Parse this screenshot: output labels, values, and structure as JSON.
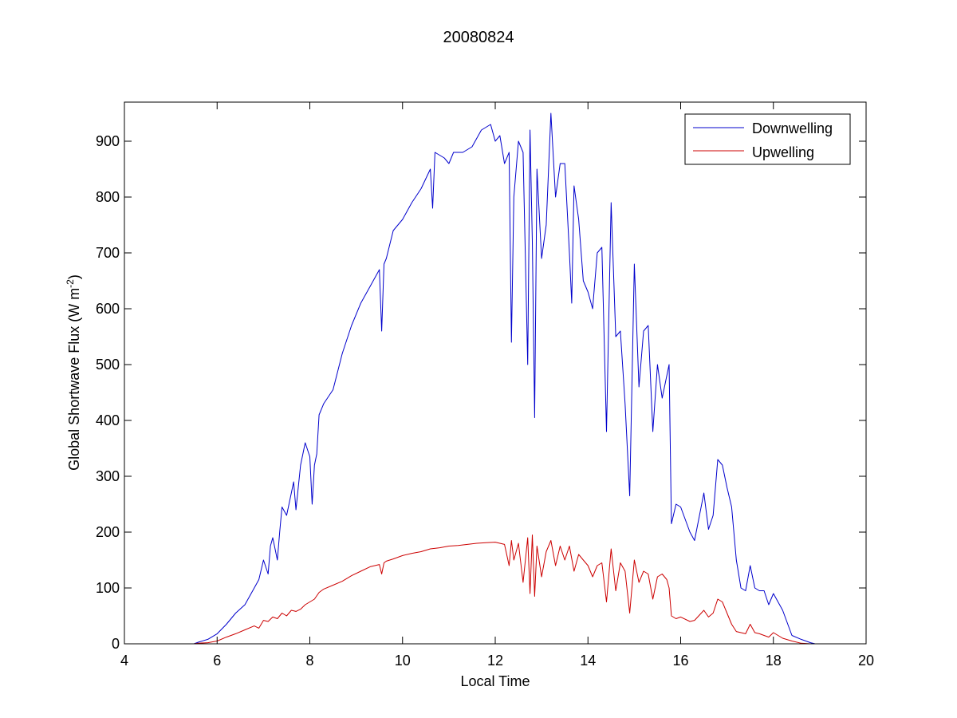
{
  "chart_data": {
    "type": "line",
    "title": "20080824",
    "xlabel": "Local Time",
    "ylabel_prefix": "Global Shortwave Flux (W m",
    "ylabel_sup": "-2",
    "ylabel_suffix": ")",
    "xlim": [
      4,
      20
    ],
    "ylim": [
      0,
      970
    ],
    "xticks": [
      4,
      6,
      8,
      10,
      12,
      14,
      16,
      18,
      20
    ],
    "yticks": [
      0,
      100,
      200,
      300,
      400,
      500,
      600,
      700,
      800,
      900
    ],
    "grid": false,
    "legend_position": "top-right",
    "series": [
      {
        "name": "Downwelling",
        "color": "#0000cc",
        "x": [
          4.0,
          4.4,
          4.8,
          5.2,
          5.5,
          5.6,
          5.8,
          6.0,
          6.2,
          6.4,
          6.6,
          6.8,
          6.9,
          7.0,
          7.1,
          7.15,
          7.2,
          7.3,
          7.35,
          7.4,
          7.5,
          7.6,
          7.65,
          7.7,
          7.8,
          7.9,
          8.0,
          8.05,
          8.1,
          8.15,
          8.2,
          8.3,
          8.5,
          8.7,
          8.9,
          9.1,
          9.3,
          9.5,
          9.55,
          9.6,
          9.65,
          9.8,
          10.0,
          10.2,
          10.4,
          10.6,
          10.65,
          10.7,
          10.9,
          11.0,
          11.1,
          11.3,
          11.5,
          11.7,
          11.9,
          12.0,
          12.1,
          12.2,
          12.3,
          12.35,
          12.4,
          12.5,
          12.6,
          12.7,
          12.75,
          12.8,
          12.85,
          12.9,
          13.0,
          13.1,
          13.2,
          13.3,
          13.4,
          13.5,
          13.6,
          13.65,
          13.7,
          13.8,
          13.9,
          14.0,
          14.1,
          14.2,
          14.3,
          14.4,
          14.5,
          14.6,
          14.7,
          14.8,
          14.9,
          15.0,
          15.1,
          15.2,
          15.3,
          15.4,
          15.5,
          15.6,
          15.7,
          15.75,
          15.8,
          15.9,
          16.0,
          16.2,
          16.3,
          16.5,
          16.6,
          16.7,
          16.8,
          16.9,
          17.0,
          17.1,
          17.2,
          17.3,
          17.4,
          17.5,
          17.6,
          17.7,
          17.8,
          17.9,
          18.0,
          18.2,
          18.4,
          18.6,
          18.8,
          18.9
        ],
        "y": [
          0,
          0,
          0,
          0,
          0,
          3,
          8,
          18,
          35,
          55,
          70,
          100,
          115,
          150,
          125,
          175,
          190,
          150,
          200,
          245,
          230,
          270,
          290,
          240,
          320,
          360,
          335,
          250,
          320,
          340,
          410,
          430,
          455,
          520,
          570,
          610,
          640,
          670,
          560,
          680,
          690,
          740,
          760,
          790,
          815,
          850,
          780,
          880,
          870,
          860,
          880,
          880,
          890,
          920,
          930,
          900,
          910,
          860,
          880,
          540,
          800,
          900,
          880,
          500,
          920,
          720,
          405,
          850,
          690,
          750,
          950,
          800,
          860,
          860,
          700,
          610,
          820,
          760,
          650,
          630,
          600,
          700,
          710,
          380,
          790,
          550,
          560,
          430,
          265,
          680,
          460,
          560,
          570,
          380,
          500,
          440,
          480,
          500,
          215,
          250,
          245,
          200,
          185,
          270,
          205,
          230,
          330,
          320,
          280,
          245,
          150,
          100,
          95,
          140,
          100,
          95,
          95,
          70,
          90,
          60,
          15,
          8,
          2,
          0
        ]
      },
      {
        "name": "Upwelling",
        "color": "#cc0000",
        "x": [
          4.0,
          4.4,
          4.8,
          5.2,
          5.5,
          5.6,
          5.8,
          6.0,
          6.2,
          6.4,
          6.6,
          6.8,
          6.9,
          7.0,
          7.1,
          7.2,
          7.3,
          7.4,
          7.5,
          7.6,
          7.7,
          7.8,
          7.9,
          8.0,
          8.1,
          8.2,
          8.3,
          8.5,
          8.7,
          8.9,
          9.1,
          9.3,
          9.5,
          9.55,
          9.6,
          9.65,
          9.8,
          10.0,
          10.2,
          10.4,
          10.6,
          10.8,
          11.0,
          11.2,
          11.4,
          11.6,
          11.8,
          12.0,
          12.2,
          12.3,
          12.35,
          12.4,
          12.5,
          12.6,
          12.7,
          12.75,
          12.8,
          12.85,
          12.9,
          13.0,
          13.1,
          13.2,
          13.3,
          13.4,
          13.5,
          13.6,
          13.7,
          13.8,
          13.9,
          14.0,
          14.1,
          14.2,
          14.3,
          14.4,
          14.5,
          14.6,
          14.7,
          14.8,
          14.9,
          15.0,
          15.1,
          15.2,
          15.3,
          15.4,
          15.5,
          15.6,
          15.7,
          15.75,
          15.8,
          15.9,
          16.0,
          16.2,
          16.3,
          16.5,
          16.6,
          16.7,
          16.8,
          16.9,
          17.0,
          17.1,
          17.2,
          17.3,
          17.4,
          17.5,
          17.6,
          17.7,
          17.8,
          17.9,
          18.0,
          18.2,
          18.4,
          18.6,
          18.8,
          18.9
        ],
        "y": [
          0,
          0,
          0,
          0,
          0,
          1,
          2,
          5,
          12,
          18,
          25,
          32,
          28,
          42,
          40,
          48,
          45,
          55,
          50,
          60,
          58,
          62,
          70,
          75,
          80,
          92,
          98,
          105,
          112,
          122,
          130,
          138,
          142,
          125,
          145,
          148,
          152,
          158,
          162,
          165,
          170,
          172,
          175,
          176,
          178,
          180,
          181,
          182,
          178,
          140,
          185,
          150,
          180,
          110,
          190,
          90,
          195,
          85,
          175,
          120,
          165,
          185,
          140,
          175,
          150,
          175,
          130,
          160,
          150,
          140,
          120,
          140,
          145,
          75,
          170,
          95,
          145,
          130,
          55,
          150,
          110,
          130,
          125,
          80,
          120,
          125,
          115,
          100,
          50,
          45,
          48,
          40,
          42,
          60,
          48,
          55,
          80,
          75,
          55,
          35,
          22,
          20,
          18,
          35,
          20,
          18,
          15,
          12,
          20,
          10,
          5,
          1,
          0,
          0
        ]
      }
    ]
  }
}
